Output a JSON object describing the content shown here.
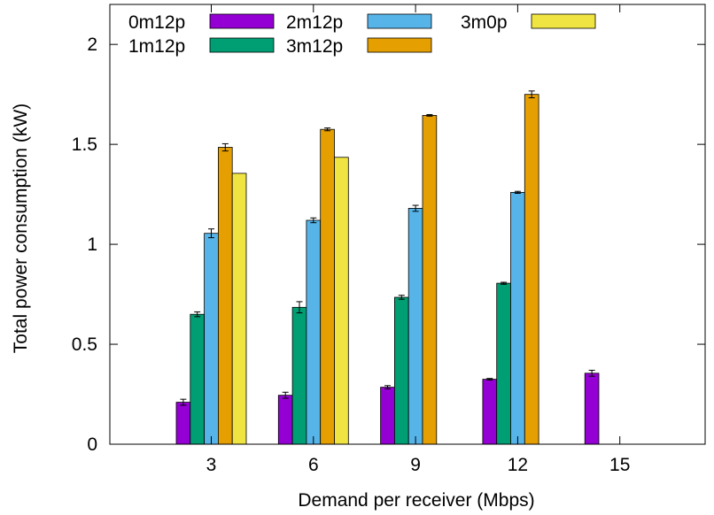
{
  "chart_data": {
    "type": "bar",
    "title": "",
    "xlabel": "Demand per receiver (Mbps)",
    "ylabel": "Total power consumption (kW)",
    "categories": [
      "3",
      "6",
      "9",
      "12",
      "15"
    ],
    "ylim": [
      0,
      2.2
    ],
    "yticks": [
      "0",
      "0.5",
      "1",
      "1.5",
      "2"
    ],
    "grid": false,
    "legend_position": "top-left",
    "series": [
      {
        "name": "0m12p",
        "color": "#9400d3",
        "values": [
          0.21,
          0.245,
          0.285,
          0.325,
          0.355
        ],
        "errors": [
          0.015,
          0.015,
          0.008,
          0.004,
          0.015
        ]
      },
      {
        "name": "1m12p",
        "color": "#009e73",
        "values": [
          0.65,
          0.685,
          0.735,
          0.805,
          0
        ],
        "errors": [
          0.012,
          0.028,
          0.01,
          0.005,
          0
        ]
      },
      {
        "name": "2m12p",
        "color": "#56b4e9",
        "values": [
          1.055,
          1.12,
          1.18,
          1.26,
          0
        ],
        "errors": [
          0.022,
          0.012,
          0.015,
          0.005,
          0
        ]
      },
      {
        "name": "3m12p",
        "color": "#e69f00",
        "values": [
          1.485,
          1.575,
          1.645,
          1.75,
          0
        ],
        "errors": [
          0.018,
          0.007,
          0.004,
          0.017,
          0
        ]
      },
      {
        "name": "3m0p",
        "color": "#f0e442",
        "values": [
          1.355,
          1.435,
          0,
          0,
          0
        ],
        "errors": [
          0,
          0,
          0,
          0,
          0
        ]
      }
    ]
  }
}
